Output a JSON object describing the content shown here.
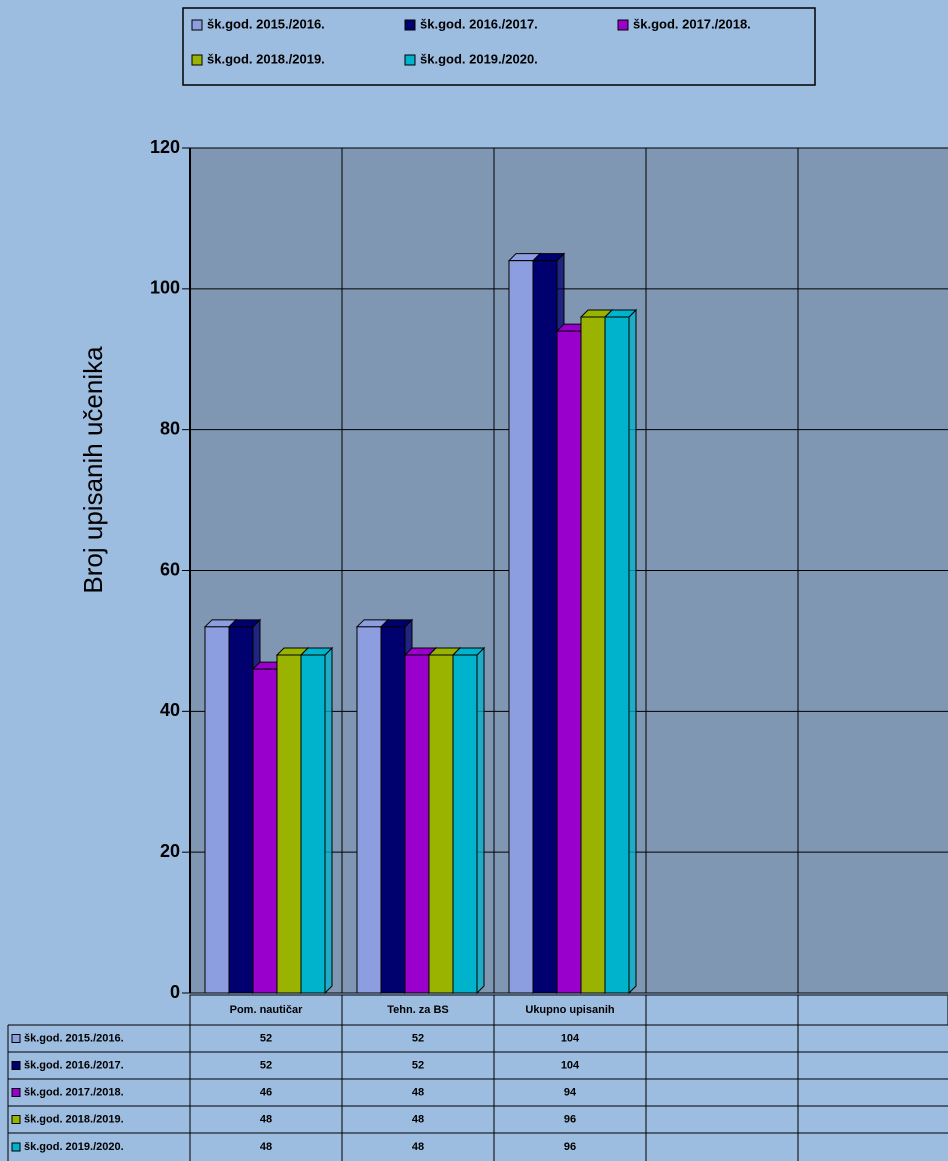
{
  "chart_data": {
    "type": "bar3d",
    "y_label": "Broj upisanih učenika",
    "categories": [
      "Pom. nautičar",
      "Tehn. za BS",
      "Ukupno upisanih",
      null,
      null
    ],
    "series": [
      {
        "name": "šk.god. 2015./2016.",
        "color": "#8c9ee0",
        "values": [
          52,
          52,
          104,
          null,
          null
        ]
      },
      {
        "name": "šk.god. 2016./2017.",
        "color": "#00006e",
        "values": [
          52,
          52,
          104,
          null,
          null
        ]
      },
      {
        "name": "šk.god. 2017./2018.",
        "color": "#9900cc",
        "values": [
          46,
          48,
          94,
          null,
          null
        ]
      },
      {
        "name": "šk.god. 2018./2019.",
        "color": "#99b300",
        "values": [
          48,
          48,
          96,
          null,
          null
        ]
      },
      {
        "name": "šk.god. 2019./2020.",
        "color": "#00b3cc",
        "values": [
          48,
          48,
          96,
          null,
          null
        ]
      }
    ],
    "ylim": [
      0,
      120
    ],
    "yticks": [
      0,
      20,
      40,
      60,
      80,
      100,
      120
    ],
    "grid": true
  }
}
